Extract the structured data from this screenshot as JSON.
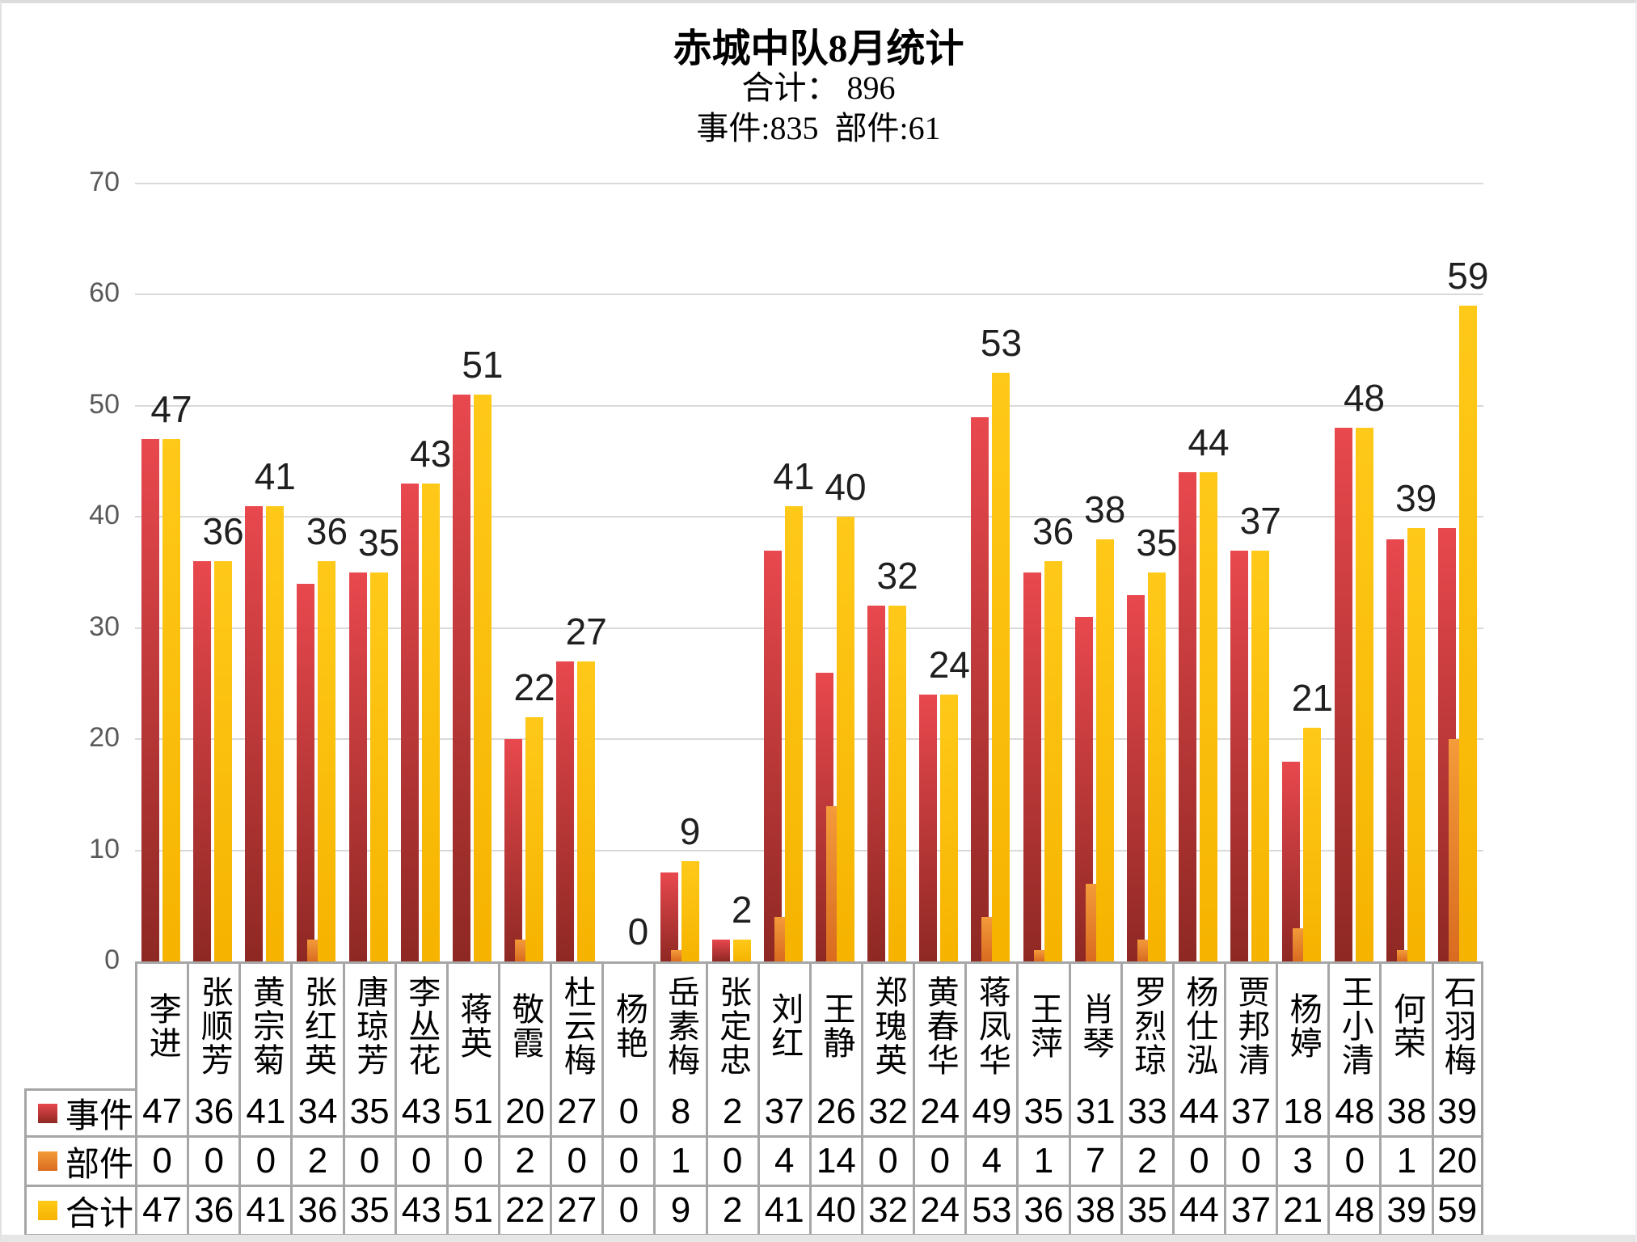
{
  "header": {
    "title": "赤城中队8月统计",
    "subtitle_total": "合计： 896",
    "subtitle_detail": "事件:835  部件:61",
    "totals": {
      "overall": 896,
      "events": 835,
      "parts": 61
    }
  },
  "y_axis": {
    "min": 0,
    "max": 70,
    "step": 10,
    "tick_labels": [
      "0",
      "10",
      "20",
      "30",
      "40",
      "50",
      "60",
      "70"
    ]
  },
  "chart_data": {
    "type": "bar",
    "title": "赤城中队8月统计",
    "xlabel": "",
    "ylabel": "",
    "ylim": [
      0,
      70
    ],
    "grid": true,
    "gridline_color": "#d9d9d9",
    "legend_position": "table-left",
    "categories": [
      "李进",
      "张顺芳",
      "黄宗菊",
      "张红英",
      "唐琼芳",
      "李丛花",
      "蒋英",
      "敬霞",
      "杜云梅",
      "杨艳",
      "岳素梅",
      "张定忠",
      "刘红",
      "王静",
      "郑瑰英",
      "黄春华",
      "蒋凤华",
      "王萍",
      "肖琴",
      "罗烈琼",
      "杨仕泓",
      "贾邦清",
      "杨婷",
      "王小清",
      "何荣",
      "石羽梅"
    ],
    "series": [
      {
        "name": "事件",
        "color": "#c0392b",
        "color_top": "#e8484e",
        "color_bottom": "#8e2823",
        "values": [
          47,
          36,
          41,
          34,
          35,
          43,
          51,
          20,
          27,
          0,
          8,
          2,
          37,
          26,
          32,
          24,
          49,
          35,
          31,
          33,
          44,
          37,
          18,
          48,
          38,
          39
        ]
      },
      {
        "name": "部件",
        "color": "#ec8a2d",
        "color_top": "#f49b3a",
        "color_bottom": "#d96b20",
        "values": [
          0,
          0,
          0,
          2,
          0,
          0,
          0,
          2,
          0,
          0,
          1,
          0,
          4,
          14,
          0,
          0,
          4,
          1,
          7,
          2,
          0,
          0,
          3,
          0,
          1,
          20
        ]
      },
      {
        "name": "合计",
        "color": "#ffc30d",
        "color_top": "#ffc919",
        "color_bottom": "#f6b300",
        "values": [
          47,
          36,
          41,
          36,
          35,
          43,
          51,
          22,
          27,
          0,
          9,
          2,
          41,
          40,
          32,
          24,
          53,
          36,
          38,
          35,
          44,
          37,
          21,
          48,
          39,
          59
        ]
      }
    ],
    "data_labels": {
      "series": "合计",
      "values": [
        47,
        36,
        41,
        36,
        35,
        43,
        51,
        22,
        27,
        0,
        9,
        2,
        41,
        40,
        32,
        24,
        53,
        36,
        38,
        35,
        44,
        37,
        21,
        48,
        39,
        59
      ]
    }
  }
}
